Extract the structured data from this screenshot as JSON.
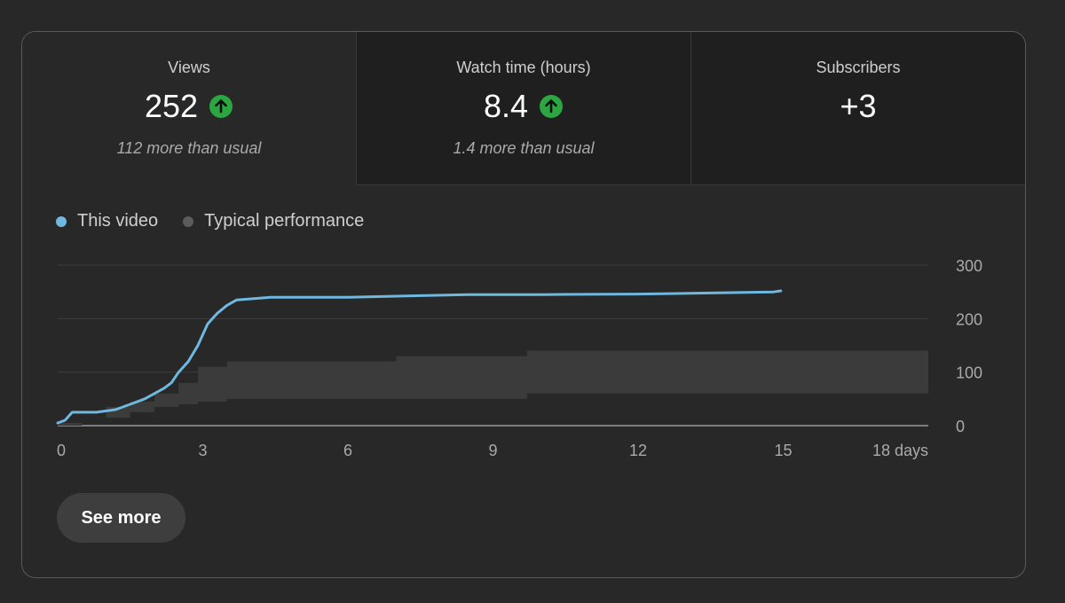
{
  "metrics": [
    {
      "label": "Views",
      "value": "252",
      "trend": "up",
      "note": "112 more than usual",
      "selected": true
    },
    {
      "label": "Watch time (hours)",
      "value": "8.4",
      "trend": "up",
      "note": "1.4 more than usual",
      "selected": false
    },
    {
      "label": "Subscribers",
      "value": "+3",
      "trend": "none",
      "note": "",
      "selected": false
    }
  ],
  "legend": {
    "this_video": "This video",
    "typical": "Typical performance"
  },
  "colors": {
    "this_video": "#6fb8e0",
    "typical": "#5c5c5c",
    "band": "#3b3b3b",
    "trend_up": "#2ba640"
  },
  "icons": {
    "trend_up": "arrow-up-circle-icon"
  },
  "chart_data": {
    "type": "line",
    "y_ticks": [
      "300",
      "200",
      "100",
      "0"
    ],
    "x_ticks": [
      "0",
      "3",
      "6",
      "9",
      "12",
      "15",
      "18 days"
    ],
    "xlim": [
      0,
      18
    ],
    "ylim": [
      0,
      300
    ],
    "grid": true,
    "series": [
      {
        "name": "This video",
        "x": [
          0,
          0.15,
          0.3,
          0.8,
          1.2,
          1.5,
          1.8,
          2.0,
          2.2,
          2.35,
          2.5,
          2.7,
          2.9,
          3.1,
          3.3,
          3.5,
          3.7,
          4.0,
          4.4,
          5.0,
          6.0,
          7.0,
          8.5,
          10.0,
          12.0,
          13.5,
          14.8,
          14.95
        ],
        "y": [
          5,
          10,
          25,
          25,
          30,
          40,
          50,
          60,
          70,
          80,
          100,
          120,
          150,
          190,
          210,
          225,
          235,
          237,
          240,
          240,
          240,
          242,
          245,
          245,
          246,
          248,
          250,
          252
        ]
      }
    ],
    "band": {
      "name": "Typical performance",
      "x": [
        0,
        0.5,
        1.0,
        1.5,
        2.0,
        2.5,
        2.9,
        3.5,
        4.3,
        6.0,
        7.0,
        9.7,
        13.0,
        18.0
      ],
      "lower": [
        0,
        5,
        10,
        15,
        25,
        35,
        40,
        45,
        50,
        50,
        50,
        50,
        60,
        60
      ],
      "upper": [
        0,
        10,
        35,
        45,
        60,
        80,
        110,
        120,
        120,
        120,
        130,
        140,
        140,
        140
      ]
    }
  },
  "button": {
    "see_more": "See more"
  }
}
